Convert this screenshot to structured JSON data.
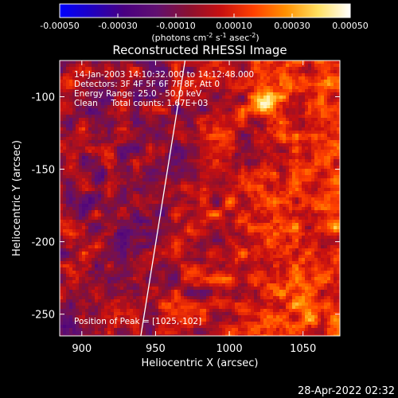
{
  "chart_data": {
    "type": "heatmap",
    "title": "Reconstructed RHESSI Image",
    "xlabel": "Heliocentric X (arcsec)",
    "ylabel": "Heliocentric Y (arcsec)",
    "xlim": [
      885,
      1075
    ],
    "ylim": [
      -265,
      -75
    ],
    "x_ticks": [
      900,
      950,
      1000,
      1050
    ],
    "y_ticks": [
      -100,
      -150,
      -200,
      -250
    ],
    "colorbar": {
      "range": [
        -0.0005,
        0.0005
      ],
      "ticks": [
        "-0.00050",
        "-0.00030",
        "-0.00010",
        "0.00010",
        "0.00030",
        "0.00050"
      ],
      "label_prefix": "(photons cm",
      "label_sup1": "-2",
      "label_mid1": " s",
      "label_sup2": "-1",
      "label_mid2": " asec",
      "label_sup3": "-2",
      "label_suffix": ")",
      "colormap_stops": [
        "#0000ff",
        "#2000c0",
        "#4a0080",
        "#601070",
        "#8a1030",
        "#c81010",
        "#ff4000",
        "#ff9000",
        "#ffe060",
        "#ffffff"
      ]
    },
    "annotations": [
      "14-Jan-2003 14:10:32.000 to 14:12:48.000",
      "Detectors: 3F 4F 5F 6F 7F 8F, Att 0",
      "Energy Range: 25.0 - 50.0 keV",
      "Clean     Total counts: 1.67E+03",
      "Position of Peak = [1025,-102]"
    ],
    "limb_line": [
      [
        940,
        -265
      ],
      [
        970,
        -75
      ]
    ],
    "peak": [
      1025,
      -102
    ],
    "grid": false
  },
  "footer_timestamp": "28-Apr-2022 02:32"
}
